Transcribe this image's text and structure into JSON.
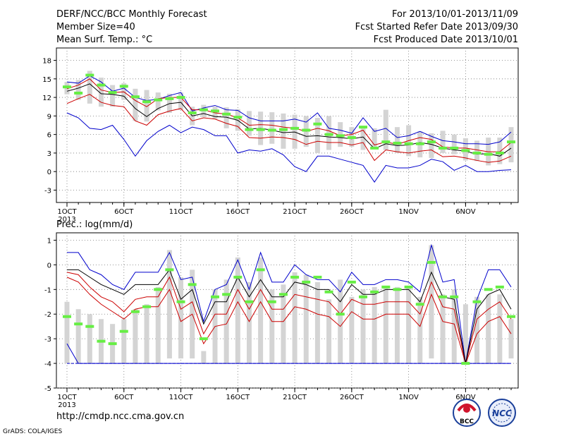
{
  "header": {
    "title": "DERF/NCC/BCC Monthly Forecast",
    "members": "Member Size=40",
    "variable": "Mean Surf. Temp.: °C",
    "period": "For 2013/10/01-2013/11/09",
    "start": "Fcst Started Refer Date 2013/09/30",
    "produced": "Fcst Produced Date 2013/10/01"
  },
  "footer": {
    "url": "http://cmdp.ncc.cma.gov.cn",
    "grads": "GrADS: COLA/IGES",
    "logo_bcc": "BCC",
    "logo_ncc": "NCC"
  },
  "colors": {
    "box": "#d4d4d4",
    "mean": "#66ee44",
    "median": "#000000",
    "inner": "#cc0000",
    "outer": "#0000cc",
    "baseline": "#0000cc"
  },
  "chart_data": [
    {
      "type": "line",
      "title": "",
      "ylabel": "",
      "ylim": [
        -5,
        20
      ],
      "yticks": [
        -3,
        0,
        3,
        6,
        9,
        12,
        15,
        18
      ],
      "grid": true,
      "x_tick_positions": [
        1,
        6,
        11,
        16,
        21,
        26,
        31,
        36
      ],
      "x_tick_labels": [
        "1OCT",
        "6OCT",
        "11OCT",
        "16OCT",
        "21OCT",
        "26OCT",
        "1NOV",
        "6NOV"
      ],
      "x_year_label": "2013",
      "days": 40,
      "box_top": [
        14.5,
        14.8,
        16.3,
        15.2,
        14,
        14.3,
        13.4,
        13.2,
        12.8,
        12.6,
        12.8,
        10.5,
        10.8,
        10.5,
        10.4,
        10.1,
        9.8,
        9.7,
        9.6,
        9.4,
        9.2,
        9,
        8.7,
        9,
        8,
        7.2,
        7.2,
        7,
        10,
        7.2,
        7.5,
        6.5,
        6.2,
        6.6,
        6,
        5.4,
        5,
        5.5,
        5.5,
        7.2
      ],
      "box_bottom": [
        12.5,
        11.6,
        11,
        10.5,
        10.5,
        11.6,
        8.2,
        8.1,
        9.9,
        9.5,
        10,
        7.5,
        8.8,
        8.5,
        7,
        6.6,
        5.8,
        4.3,
        4.5,
        3.7,
        3.7,
        4,
        3,
        3.5,
        4,
        4,
        3.5,
        3.7,
        3.5,
        3,
        2.5,
        2.3,
        2.2,
        3,
        2.8,
        1.8,
        1.7,
        1,
        1.2,
        1.5
      ],
      "mean": [
        13.7,
        12.7,
        15.6,
        14,
        12.8,
        13.8,
        12.1,
        11.3,
        11.6,
        11.8,
        12,
        9.5,
        10,
        9.8,
        9.3,
        8.8,
        6.8,
        6.8,
        6.7,
        6.8,
        7,
        6.7,
        7.7,
        6,
        5.8,
        5.5,
        7.2,
        3.8,
        4.8,
        4.6,
        4.5,
        4.5,
        4.8,
        3.8,
        3.8,
        3.4,
        3,
        2.8,
        3,
        4.8
      ],
      "median": [
        13,
        13.5,
        14.2,
        12.6,
        12.5,
        12.2,
        10.2,
        8.9,
        10.2,
        11,
        11.2,
        9,
        9.4,
        8.9,
        8.8,
        8.3,
        6.9,
        7,
        6.7,
        6.3,
        6.4,
        5.7,
        5.8,
        5.6,
        5.5,
        5.3,
        5.6,
        3.7,
        4.5,
        4.2,
        4.3,
        4.7,
        4.4,
        3.8,
        3.5,
        3.3,
        2.8,
        2.9,
        2.5,
        3.8
      ],
      "inner_high": [
        13.4,
        14,
        15,
        13.2,
        12.8,
        12.9,
        11.5,
        10.5,
        11.8,
        12,
        12,
        10,
        10,
        9.5,
        9.3,
        8.7,
        7.5,
        7.6,
        7.5,
        7.2,
        7,
        6.5,
        7,
        6.6,
        5.8,
        6,
        6.7,
        4.3,
        4.8,
        4.4,
        5,
        5.5,
        5.2,
        4,
        3.8,
        3.8,
        3.5,
        3.2,
        3.2,
        4.7
      ],
      "inner_low": [
        11,
        11.8,
        12.5,
        11.2,
        10.7,
        10.5,
        8.2,
        7.5,
        9.2,
        9.8,
        10.2,
        8.2,
        8.7,
        8.5,
        7.8,
        7.3,
        5.5,
        5.4,
        5.6,
        5.5,
        5.2,
        4.4,
        4.9,
        4.7,
        4.7,
        4.3,
        4.7,
        1.8,
        3.5,
        3.2,
        3,
        3.3,
        3.5,
        2.4,
        2.5,
        2.2,
        1.8,
        1.5,
        1.7,
        2.5
      ],
      "outer_high": [
        14.5,
        14.3,
        15.5,
        14.5,
        13,
        13.5,
        12,
        11.5,
        11.7,
        12.3,
        12.8,
        9.8,
        10.3,
        10.7,
        10,
        9.9,
        8.7,
        8.2,
        8.2,
        8.2,
        8.5,
        8,
        9.5,
        7,
        6.7,
        6.2,
        8.7,
        6.5,
        7,
        5.5,
        5.8,
        6.5,
        5.7,
        5,
        4.8,
        4.5,
        4.5,
        4.4,
        4.8,
        6.4
      ],
      "outer_low": [
        9.5,
        8.7,
        7,
        6.8,
        7.5,
        5.2,
        2.5,
        5,
        6.5,
        7.5,
        6.3,
        7.2,
        6.8,
        5.8,
        5.8,
        3,
        3.5,
        3.3,
        3.7,
        2.7,
        0.8,
        0,
        2.5,
        2.5,
        2,
        1.5,
        1,
        -1.7,
        1,
        0.6,
        0.6,
        1,
        2,
        1.6,
        0.2,
        1,
        0,
        0,
        0.2,
        0.3
      ]
    },
    {
      "type": "line",
      "title": "Prec.: log(mm/d)",
      "ylabel": "",
      "ylim": [
        -5,
        1.3
      ],
      "yticks": [
        -5,
        -4,
        -3,
        -2,
        -1,
        0,
        1
      ],
      "grid": true,
      "baseline": -4,
      "x_tick_positions": [
        1,
        6,
        11,
        16,
        21,
        26,
        31,
        36
      ],
      "x_tick_labels": [
        "1OCT",
        "6OCT",
        "11OCT",
        "16OCT",
        "21OCT",
        "26OCT",
        "1NOV",
        "6NOV"
      ],
      "x_year_label": "2013",
      "days": 40,
      "box_top": [
        -1.5,
        -1.8,
        -2,
        -2.2,
        -2.4,
        -2.2,
        -1.8,
        -1.6,
        -0.9,
        0.6,
        -0.5,
        -0.2,
        -3.5,
        -1,
        -0.6,
        0.3,
        -0.7,
        0.3,
        -1,
        -0.8,
        -0.3,
        -0.4,
        -0.7,
        -1.4,
        -0.6,
        -1.3,
        -1,
        -0.9,
        -0.9,
        -0.9,
        -0.9,
        -1.3,
        0.8,
        -1.2,
        -1,
        -1.6,
        -1.3,
        -1.2,
        -1.2,
        -2.2
      ],
      "box_bottom": [
        -4,
        -4,
        -4,
        -4,
        -4,
        -4,
        -4,
        -4,
        -4,
        -3.8,
        -3.8,
        -3.8,
        -4,
        -4,
        -4,
        -4,
        -4,
        -4,
        -4,
        -4,
        -4,
        -4,
        -4,
        -4,
        -4,
        -4,
        -4,
        -4,
        -4,
        -4,
        -4,
        -4,
        -3.8,
        -4,
        -4,
        -4,
        -4,
        -4,
        -4,
        -3.8
      ],
      "mean": [
        -2.1,
        -2.4,
        -2.5,
        -3.1,
        -3.2,
        -2.7,
        -1.9,
        -1.7,
        -1,
        -0.2,
        -1.5,
        -0.8,
        -3,
        -1.3,
        -1.2,
        -0.5,
        -1.5,
        -0.2,
        -1.5,
        -1.2,
        -0.5,
        -0.7,
        -0.5,
        -1.1,
        -2,
        -0.7,
        -1.3,
        -1.1,
        -0.9,
        -1,
        -0.9,
        -1.6,
        0.1,
        -1.3,
        -1.3,
        -4,
        -1.5,
        -1,
        -0.9,
        -2.1
      ],
      "median": [
        -0.2,
        -0.2,
        -0.5,
        -0.8,
        -1,
        -1.2,
        -0.8,
        -0.8,
        -0.8,
        -0.2,
        -1.4,
        -1,
        -2.4,
        -1.5,
        -1.5,
        -0.5,
        -1.3,
        -0.6,
        -1.3,
        -1.3,
        -0.7,
        -0.8,
        -1,
        -1,
        -1.5,
        -0.8,
        -1.2,
        -1.2,
        -1,
        -1,
        -1,
        -1.5,
        -0.3,
        -1.3,
        -1.4,
        -4,
        -1.8,
        -1.2,
        -1,
        -1.8
      ],
      "inner_high": [
        -0.3,
        -0.4,
        -0.9,
        -1.3,
        -1.5,
        -1.9,
        -1.4,
        -1.3,
        -1.3,
        -0.5,
        -1.8,
        -1.5,
        -2.8,
        -2,
        -2,
        -1,
        -1.8,
        -1,
        -1.8,
        -1.8,
        -1.2,
        -1.3,
        -1.4,
        -1.5,
        -2,
        -1.4,
        -1.6,
        -1.6,
        -1.5,
        -1.5,
        -1.5,
        -2,
        -0.7,
        -1.7,
        -1.8,
        -4,
        -2.2,
        -1.8,
        -1.5,
        -2.2
      ],
      "inner_low": [
        -0.5,
        -0.7,
        -1.2,
        -1.6,
        -1.9,
        -2.2,
        -1.8,
        -1.7,
        -1.7,
        -1,
        -2.3,
        -2,
        -3.2,
        -2.5,
        -2.4,
        -1.5,
        -2.3,
        -1.5,
        -2.3,
        -2.3,
        -1.7,
        -1.8,
        -2,
        -2.1,
        -2.5,
        -1.9,
        -2.2,
        -2.2,
        -2,
        -2,
        -2,
        -2.5,
        -1.2,
        -2.3,
        -2.4,
        -4,
        -2.8,
        -2.3,
        -2.1,
        -2.8
      ],
      "outer_high": [
        0.5,
        0.5,
        -0.2,
        -0.4,
        -0.8,
        -1,
        -0.3,
        -0.3,
        -0.3,
        0.5,
        -0.6,
        -0.5,
        -2.3,
        -1,
        -0.8,
        0.2,
        -1,
        0.5,
        -0.7,
        -0.7,
        0,
        -0.4,
        -0.6,
        -0.6,
        -1.1,
        -0.3,
        -0.8,
        -0.8,
        -0.6,
        -0.6,
        -0.7,
        -1.1,
        0.8,
        -0.7,
        -0.6,
        -4,
        -1.4,
        -0.2,
        -0.2,
        -0.9
      ],
      "outer_low": [
        -3.2,
        -4,
        -4,
        -4,
        -4,
        -4,
        -4,
        -4,
        -4,
        -4,
        -4,
        -4,
        -4,
        -4,
        -4,
        -4,
        -4,
        -4,
        -4,
        -4,
        -4,
        -4,
        -4,
        -4,
        -4,
        -4,
        -4,
        -4,
        -4,
        -4,
        -4,
        -4,
        -4,
        -4,
        -4,
        -4,
        -4,
        -4,
        -4,
        -4
      ]
    }
  ]
}
